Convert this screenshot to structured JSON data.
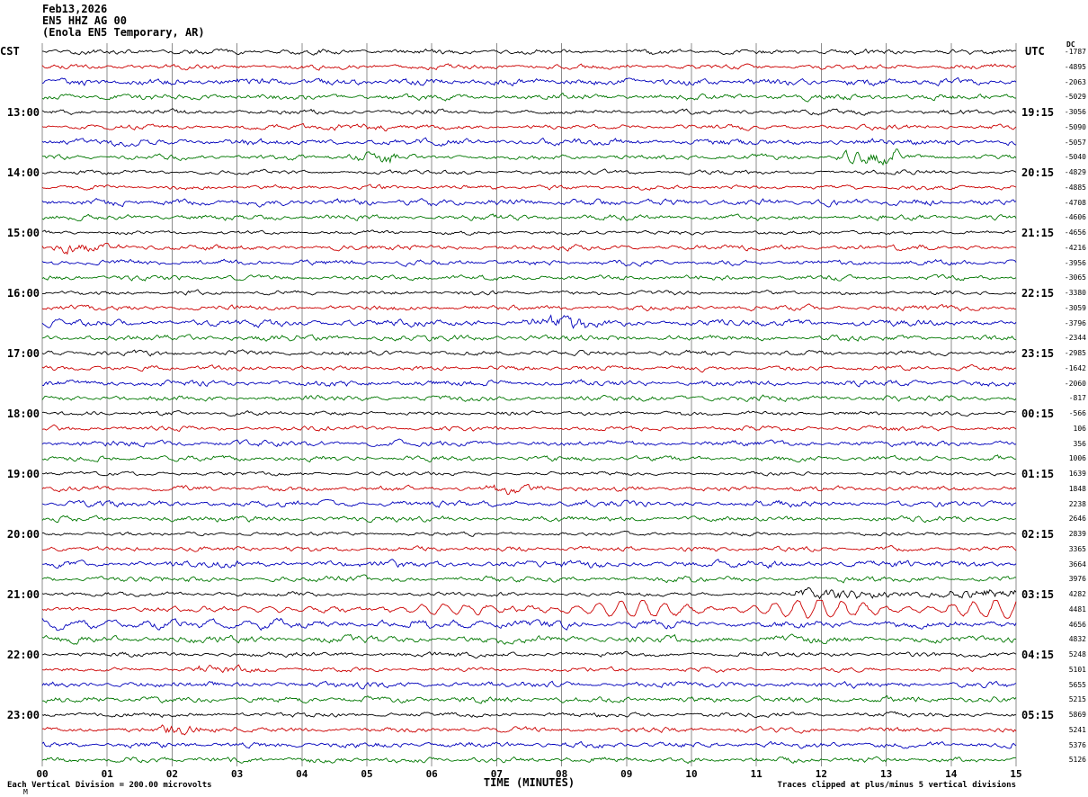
{
  "header": {
    "date": "Feb13,2026",
    "station": "EN5 HHZ AG 00",
    "description": "(Enola EN5 Temporary, AR)"
  },
  "axes": {
    "left_title": "CST",
    "right_title": "UTC",
    "dc_title": "DC",
    "x_title": "TIME (MINUTES)",
    "x_ticks": [
      "00",
      "01",
      "02",
      "03",
      "04",
      "05",
      "06",
      "07",
      "08",
      "09",
      "10",
      "11",
      "12",
      "13",
      "14",
      "15"
    ]
  },
  "footer": {
    "left": "Each Vertical Division =  200.00 microvolts",
    "right": "Traces clipped at plus/minus 5 vertical divisions",
    "mark": "M"
  },
  "colors": {
    "black": "#000000",
    "red": "#cc0000",
    "blue": "#0000bb",
    "green": "#007700",
    "grid": "#8c8c8c"
  },
  "chart_data": {
    "type": "line",
    "subtype": "helicorder-seismogram",
    "x_range_minutes": [
      0,
      15
    ],
    "minutes_per_row": 15,
    "rows_per_hour": 4,
    "vertical_division_microvolts": 200.0,
    "clip_divisions": 5,
    "amp_defaults": {
      "black": 1.7,
      "red": 1.9,
      "blue": 2.4,
      "green": 2.2
    },
    "rows": [
      {
        "color": "black",
        "dc": "-1787"
      },
      {
        "color": "red",
        "dc": "-4895"
      },
      {
        "color": "blue",
        "dc": "-2063"
      },
      {
        "color": "green",
        "dc": "-5029"
      },
      {
        "color": "black",
        "dc": "-3056",
        "left": "13:00",
        "right": "19:15"
      },
      {
        "color": "red",
        "dc": "-5090",
        "bursts": [
          [
            4.4,
            5.3,
            2.4
          ]
        ]
      },
      {
        "color": "blue",
        "dc": "-5057"
      },
      {
        "color": "green",
        "dc": "-5040",
        "bursts": [
          [
            4.7,
            5.5,
            3.0
          ],
          [
            12.2,
            13.2,
            3.0
          ]
        ]
      },
      {
        "color": "black",
        "dc": "-4829",
        "left": "14:00",
        "right": "20:15"
      },
      {
        "color": "red",
        "dc": "-4885"
      },
      {
        "color": "blue",
        "dc": "-4708"
      },
      {
        "color": "green",
        "dc": "-4606"
      },
      {
        "color": "black",
        "dc": "-4656",
        "left": "15:00",
        "right": "21:15"
      },
      {
        "color": "red",
        "dc": "-4216",
        "bursts": [
          [
            0.3,
            1.3,
            2.2
          ]
        ]
      },
      {
        "color": "blue",
        "dc": "-3956"
      },
      {
        "color": "green",
        "dc": "-3065"
      },
      {
        "color": "black",
        "dc": "-3380",
        "left": "16:00",
        "right": "22:15"
      },
      {
        "color": "red",
        "dc": "-3059"
      },
      {
        "color": "blue",
        "dc": "-3796",
        "bursts": [
          [
            7.4,
            8.4,
            2.0
          ]
        ]
      },
      {
        "color": "green",
        "dc": "-2344"
      },
      {
        "color": "black",
        "dc": "-2985",
        "left": "17:00",
        "right": "23:15"
      },
      {
        "color": "red",
        "dc": "-1642"
      },
      {
        "color": "blue",
        "dc": "-2060"
      },
      {
        "color": "green",
        "dc": "-817"
      },
      {
        "color": "black",
        "dc": "-566",
        "left": "18:00",
        "right": "00:15"
      },
      {
        "color": "red",
        "dc": "106"
      },
      {
        "color": "blue",
        "dc": "356"
      },
      {
        "color": "green",
        "dc": "1006"
      },
      {
        "color": "black",
        "dc": "1639",
        "left": "19:00",
        "right": "01:15"
      },
      {
        "color": "red",
        "dc": "1848",
        "bursts": [
          [
            6.8,
            7.8,
            2.1
          ]
        ]
      },
      {
        "color": "blue",
        "dc": "2238"
      },
      {
        "color": "green",
        "dc": "2646"
      },
      {
        "color": "black",
        "dc": "2839",
        "left": "20:00",
        "right": "02:15"
      },
      {
        "color": "red",
        "dc": "3365"
      },
      {
        "color": "blue",
        "dc": "3664"
      },
      {
        "color": "green",
        "dc": "3976"
      },
      {
        "color": "black",
        "dc": "4282",
        "left": "21:00",
        "right": "03:15",
        "bursts": [
          [
            11.5,
            15,
            2.4
          ]
        ]
      },
      {
        "color": "red",
        "dc": "4481",
        "amp": 2.0,
        "clip": 10,
        "sine": {
          "start": 2.4,
          "period": 0.34,
          "a0": 1.5,
          "a1": 10,
          "phase": 0.2
        }
      },
      {
        "color": "blue",
        "dc": "4656",
        "amp": 2.8,
        "sine": {
          "start": 0,
          "period": 0.52,
          "a0": 5,
          "a1": 1.6,
          "phase": 1.2
        }
      },
      {
        "color": "green",
        "dc": "4832",
        "amp": 2.8
      },
      {
        "color": "black",
        "dc": "5248",
        "left": "22:00",
        "right": "04:15"
      },
      {
        "color": "red",
        "dc": "5101",
        "bursts": [
          [
            2.4,
            3.6,
            2.0
          ]
        ]
      },
      {
        "color": "blue",
        "dc": "5655"
      },
      {
        "color": "green",
        "dc": "5215"
      },
      {
        "color": "black",
        "dc": "5869",
        "left": "23:00",
        "right": "05:15"
      },
      {
        "color": "red",
        "dc": "5241",
        "bursts": [
          [
            1.8,
            3.0,
            2.1
          ]
        ]
      },
      {
        "color": "blue",
        "dc": "5376"
      },
      {
        "color": "green",
        "dc": "5126"
      }
    ]
  }
}
